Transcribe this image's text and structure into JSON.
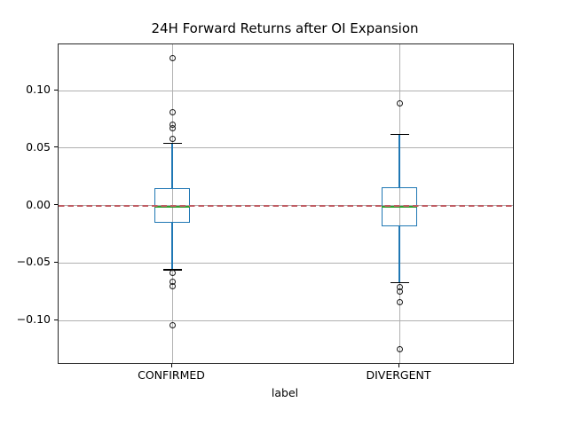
{
  "chart_data": {
    "type": "boxplot",
    "title": "24H Forward Returns after OI Expansion",
    "xlabel": "label",
    "ylabel": "",
    "categories": [
      "CONFIRMED",
      "DIVERGENT"
    ],
    "ylim": [
      -0.137,
      0.1402
    ],
    "yticks": [
      -0.1,
      -0.05,
      0.0,
      0.05,
      0.1
    ],
    "ytick_labels": [
      "−0.10",
      "−0.05",
      "0.00",
      "0.05",
      "0.10"
    ],
    "grid": true,
    "legend": false,
    "reference_line": {
      "value": 0.0,
      "style": "dashed",
      "color": "#c05d64"
    },
    "series": [
      {
        "label": "CONFIRMED",
        "q1": -0.015,
        "median": -0.001,
        "q3": 0.015,
        "whisker_low": -0.056,
        "whisker_high": 0.054,
        "outliers": [
          0.128,
          0.081,
          0.07,
          0.067,
          0.058,
          -0.059,
          -0.066,
          -0.07,
          -0.104
        ]
      },
      {
        "label": "DIVERGENT",
        "q1": -0.018,
        "median": -0.001,
        "q3": 0.016,
        "whisker_low": -0.067,
        "whisker_high": 0.062,
        "outliers": [
          0.089,
          -0.071,
          -0.075,
          -0.084,
          -0.125
        ]
      }
    ],
    "colors": {
      "box": "#1f77b4",
      "whisker": "#1f77b4",
      "median": "#2ca02c",
      "cap": "#000000",
      "flier": "#1a1a1a",
      "grid": "#b0b0b0",
      "zero_line": "#c05d64",
      "background": "#ffffff"
    }
  }
}
